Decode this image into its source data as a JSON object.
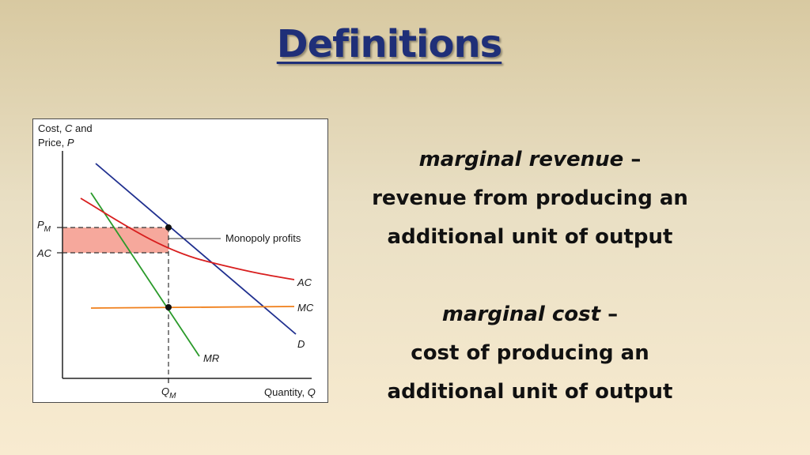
{
  "title": "Definitions",
  "graph": {
    "y_axis_label_line1": "Cost, ",
    "y_axis_label_c": "C",
    "y_axis_label_and": " and",
    "y_axis_label_line2": "Price, ",
    "y_axis_label_p": "P",
    "tick_pm": "P",
    "tick_pm_sub": "M",
    "tick_ac": "AC",
    "x_axis_label": "Quantity, ",
    "x_axis_label_q": "Q",
    "tick_qm": "Q",
    "tick_qm_sub": "M",
    "profit_label": "Monopoly profits",
    "curve_ac": "AC",
    "curve_mc": "MC",
    "curve_d": "D",
    "curve_mr": "MR",
    "colors": {
      "demand": "#1f2f8f",
      "mr": "#2a9a2a",
      "ac": "#d81e1e",
      "mc": "#f07f1a",
      "profit_fill": "#f6a89c"
    }
  },
  "definitions": [
    {
      "term": "marginal revenue",
      "dash": " –",
      "line1": "revenue from producing an",
      "line2": "additional unit of output"
    },
    {
      "term": "marginal cost",
      "dash": " –",
      "line1": "cost of producing an",
      "line2": "additional unit of output"
    }
  ]
}
